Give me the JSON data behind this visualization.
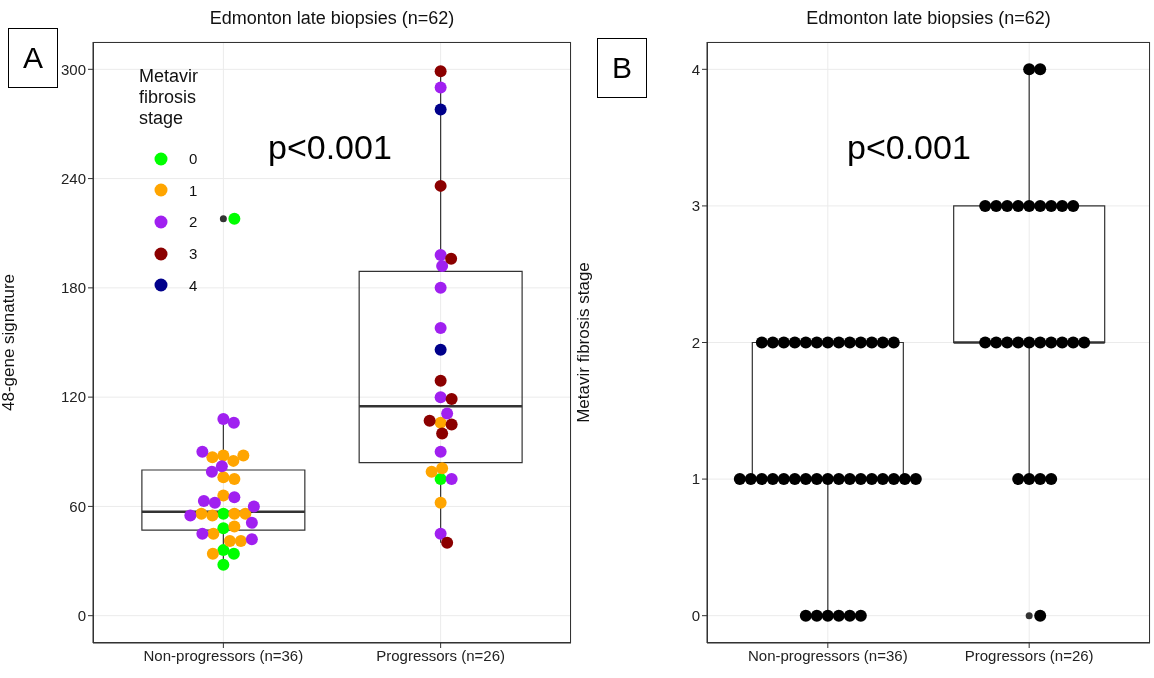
{
  "chart_data": [
    {
      "type": "box",
      "title": "Edmonton late biopsies (n=62)",
      "ylabel": "48-gene signature",
      "legend_title": "Metavir fibrosis stage",
      "legend": "top left",
      "grid": true,
      "marker": "circle",
      "annotations": [
        "A",
        "p<0.001"
      ],
      "categories": [
        "Non-progressors (n=36)",
        "Progressors (n=26)"
      ],
      "ylim": [
        -15,
        315
      ],
      "yticks": [
        0,
        60,
        120,
        180,
        240,
        300
      ],
      "boxes": [
        {
          "low": 28,
          "q1": 47,
          "median": 57,
          "q3": 80,
          "high": 108,
          "outliers": [
            218
          ]
        },
        {
          "low": 40,
          "q1": 84,
          "median": 115,
          "q3": 189,
          "high": 299
        }
      ],
      "series": [
        {
          "type": "scatter",
          "name": "0",
          "color": "#00ff00",
          "x": [
            "Non-progressors (n=36)",
            "Non-progressors (n=36)",
            "Non-progressors (n=36)",
            "Non-progressors (n=36)",
            "Non-progressors (n=36)",
            "Non-progressors (n=36)",
            "Progressors (n=26)"
          ],
          "values": [
            218,
            56,
            48,
            36,
            34,
            28,
            75
          ]
        },
        {
          "type": "scatter",
          "name": "1",
          "color": "#ffa500",
          "x": [
            "Non-progressors (n=36)",
            "Non-progressors (n=36)",
            "Non-progressors (n=36)",
            "Non-progressors (n=36)",
            "Non-progressors (n=36)",
            "Non-progressors (n=36)",
            "Non-progressors (n=36)",
            "Non-progressors (n=36)",
            "Non-progressors (n=36)",
            "Non-progressors (n=36)",
            "Non-progressors (n=36)",
            "Non-progressors (n=36)",
            "Non-progressors (n=36)",
            "Non-progressors (n=36)",
            "Non-progressors (n=36)",
            "Non-progressors (n=36)",
            "Progressors (n=26)",
            "Progressors (n=26)",
            "Progressors (n=26)",
            "Progressors (n=26)"
          ],
          "values": [
            88,
            85,
            87,
            88,
            76,
            75,
            66,
            56,
            55,
            56,
            56,
            49,
            45,
            41,
            41,
            34,
            106,
            81,
            79,
            62
          ]
        },
        {
          "type": "scatter",
          "name": "2",
          "color": "#a020f0",
          "x": [
            "Non-progressors (n=36)",
            "Non-progressors (n=36)",
            "Non-progressors (n=36)",
            "Non-progressors (n=36)",
            "Non-progressors (n=36)",
            "Non-progressors (n=36)",
            "Non-progressors (n=36)",
            "Non-progressors (n=36)",
            "Non-progressors (n=36)",
            "Non-progressors (n=36)",
            "Non-progressors (n=36)",
            "Non-progressors (n=36)",
            "Non-progressors (n=36)",
            "Progressors (n=26)",
            "Progressors (n=26)",
            "Progressors (n=26)",
            "Progressors (n=26)",
            "Progressors (n=26)",
            "Progressors (n=26)",
            "Progressors (n=26)",
            "Progressors (n=26)",
            "Progressors (n=26)",
            "Progressors (n=26)"
          ],
          "values": [
            108,
            106,
            90,
            82,
            79,
            65,
            62,
            63,
            60,
            55,
            51,
            45,
            42,
            290,
            198,
            192,
            180,
            158,
            120,
            111,
            90,
            75,
            45
          ]
        },
        {
          "type": "scatter",
          "name": "3",
          "color": "#8b0000",
          "x": [
            "Progressors (n=26)",
            "Progressors (n=26)",
            "Progressors (n=26)",
            "Progressors (n=26)",
            "Progressors (n=26)",
            "Progressors (n=26)",
            "Progressors (n=26)",
            "Progressors (n=26)",
            "Progressors (n=26)"
          ],
          "values": [
            299,
            236,
            196,
            129,
            119,
            105,
            107,
            100,
            40
          ]
        },
        {
          "type": "scatter",
          "name": "4",
          "color": "#00008b",
          "x": [
            "Progressors (n=26)",
            "Progressors (n=26)"
          ],
          "values": [
            278,
            146
          ]
        }
      ]
    },
    {
      "type": "box",
      "title": "Edmonton late biopsies (n=62)",
      "ylabel": "Metavir fibrosis stage",
      "grid": true,
      "marker": "circle",
      "annotations": [
        "B",
        "p<0.001"
      ],
      "categories": [
        "Non-progressors (n=36)",
        "Progressors (n=26)"
      ],
      "ylim": [
        -0.2,
        4.2
      ],
      "yticks": [
        0,
        1,
        2,
        3,
        4
      ],
      "boxes": [
        {
          "low": 0,
          "q1": 1,
          "median": 1,
          "q3": 2,
          "high": 2
        },
        {
          "low": 1,
          "q1": 2,
          "median": 2,
          "q3": 3,
          "high": 4,
          "outliers": [
            0
          ]
        }
      ],
      "series": [
        {
          "type": "scatter",
          "color": "#000000",
          "x": [
            "Non-progressors (n=36)",
            "Non-progressors (n=36)",
            "Non-progressors (n=36)",
            "Non-progressors (n=36)",
            "Non-progressors (n=36)",
            "Non-progressors (n=36)",
            "Non-progressors (n=36)",
            "Non-progressors (n=36)",
            "Non-progressors (n=36)",
            "Non-progressors (n=36)",
            "Non-progressors (n=36)",
            "Non-progressors (n=36)",
            "Non-progressors (n=36)",
            "Non-progressors (n=36)",
            "Non-progressors (n=36)",
            "Non-progressors (n=36)",
            "Non-progressors (n=36)",
            "Non-progressors (n=36)",
            "Non-progressors (n=36)",
            "Non-progressors (n=36)",
            "Non-progressors (n=36)",
            "Non-progressors (n=36)",
            "Non-progressors (n=36)",
            "Non-progressors (n=36)",
            "Non-progressors (n=36)",
            "Non-progressors (n=36)",
            "Non-progressors (n=36)",
            "Non-progressors (n=36)",
            "Non-progressors (n=36)",
            "Non-progressors (n=36)",
            "Non-progressors (n=36)",
            "Non-progressors (n=36)",
            "Non-progressors (n=36)",
            "Non-progressors (n=36)",
            "Non-progressors (n=36)",
            "Non-progressors (n=36)",
            "Progressors (n=26)",
            "Progressors (n=26)",
            "Progressors (n=26)",
            "Progressors (n=26)",
            "Progressors (n=26)",
            "Progressors (n=26)",
            "Progressors (n=26)",
            "Progressors (n=26)",
            "Progressors (n=26)",
            "Progressors (n=26)",
            "Progressors (n=26)",
            "Progressors (n=26)",
            "Progressors (n=26)",
            "Progressors (n=26)",
            "Progressors (n=26)",
            "Progressors (n=26)",
            "Progressors (n=26)",
            "Progressors (n=26)",
            "Progressors (n=26)",
            "Progressors (n=26)",
            "Progressors (n=26)",
            "Progressors (n=26)",
            "Progressors (n=26)",
            "Progressors (n=26)",
            "Progressors (n=26)",
            "Progressors (n=26)"
          ],
          "values": [
            2,
            2,
            2,
            2,
            2,
            2,
            2,
            2,
            2,
            2,
            2,
            2,
            2,
            1,
            1,
            1,
            1,
            1,
            1,
            1,
            1,
            1,
            1,
            1,
            1,
            1,
            1,
            1,
            1,
            1,
            0,
            0,
            0,
            0,
            0,
            0,
            2,
            2,
            2,
            2,
            2,
            2,
            2,
            2,
            2,
            2,
            1,
            1,
            1,
            1,
            0,
            3,
            3,
            3,
            3,
            3,
            3,
            3,
            3,
            3,
            4,
            4
          ]
        }
      ]
    }
  ]
}
